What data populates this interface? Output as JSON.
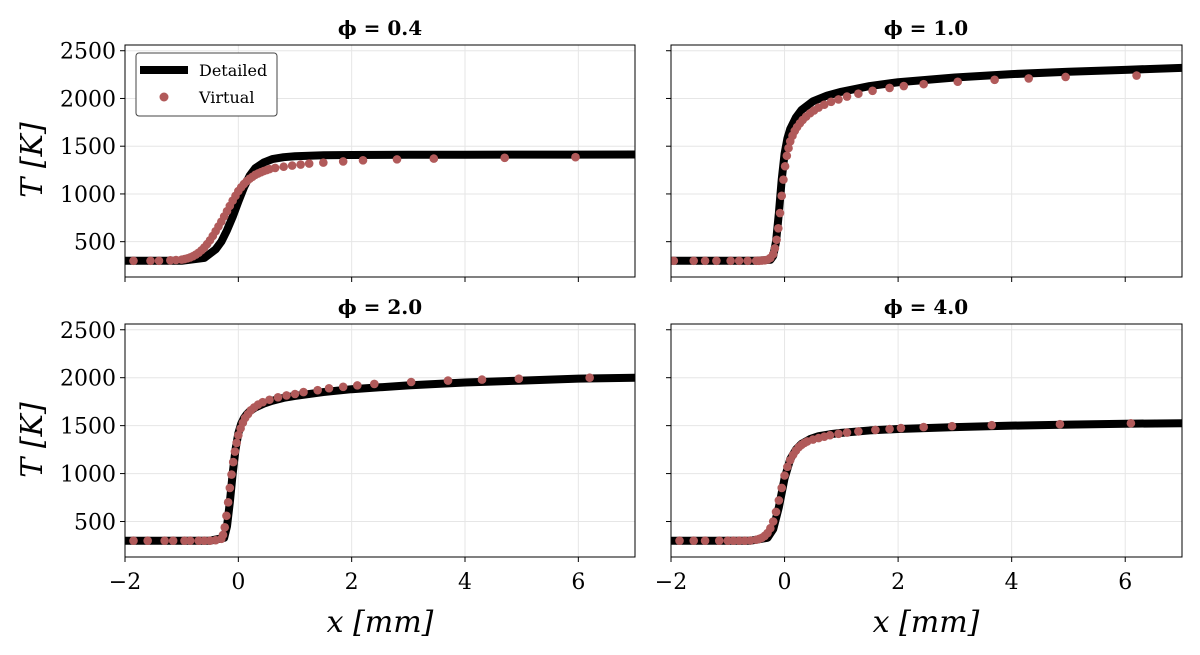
{
  "colors": {
    "detailed": "#000000",
    "virtual": "#b15a5a",
    "grid": "#e6e6e6"
  },
  "chart_data": [
    {
      "type": "line",
      "title": "ϕ = 0.4",
      "xlim": [
        -2,
        7
      ],
      "ylim": [
        130,
        2560
      ],
      "xticks": [
        -2,
        0,
        2,
        4,
        6
      ],
      "yticks": [
        500,
        1000,
        1500,
        2000,
        2500
      ],
      "show_xticklabels": false,
      "show_yticklabels": true,
      "xlabel": "",
      "ylabel": "T [K]",
      "grid": true,
      "legend": {
        "position": "top-left",
        "entries": [
          "Detailed",
          "Virtual"
        ]
      },
      "series": [
        {
          "name": "Detailed",
          "style": "line",
          "x": [
            -2.0,
            -1.0,
            -0.6,
            -0.4,
            -0.3,
            -0.2,
            -0.1,
            0.0,
            0.1,
            0.2,
            0.3,
            0.45,
            0.6,
            0.8,
            1.0,
            1.5,
            2.0,
            3.0,
            4.0,
            5.0,
            6.0,
            7.0
          ],
          "y": [
            300,
            300,
            330,
            420,
            500,
            620,
            760,
            920,
            1070,
            1190,
            1270,
            1330,
            1365,
            1385,
            1395,
            1405,
            1408,
            1410,
            1411,
            1412,
            1412,
            1413
          ]
        },
        {
          "name": "Virtual",
          "style": "scatter",
          "x": [
            -1.85,
            -1.55,
            -1.4,
            -1.2,
            -1.1,
            -1.0,
            -0.95,
            -0.9,
            -0.85,
            -0.8,
            -0.75,
            -0.7,
            -0.65,
            -0.6,
            -0.55,
            -0.5,
            -0.45,
            -0.4,
            -0.35,
            -0.3,
            -0.25,
            -0.2,
            -0.15,
            -0.1,
            -0.05,
            0.0,
            0.05,
            0.1,
            0.15,
            0.2,
            0.25,
            0.3,
            0.35,
            0.4,
            0.45,
            0.5,
            0.55,
            0.65,
            0.8,
            0.95,
            1.1,
            1.25,
            1.5,
            1.85,
            2.2,
            2.8,
            3.45,
            4.7,
            5.95
          ],
          "y": [
            300,
            300,
            300,
            305,
            308,
            312,
            318,
            325,
            335,
            348,
            365,
            385,
            410,
            440,
            475,
            515,
            560,
            610,
            660,
            710,
            765,
            820,
            875,
            930,
            980,
            1030,
            1070,
            1105,
            1135,
            1160,
            1180,
            1200,
            1215,
            1228,
            1240,
            1250,
            1260,
            1272,
            1285,
            1297,
            1308,
            1318,
            1328,
            1340,
            1352,
            1362,
            1370,
            1378,
            1385
          ]
        }
      ]
    },
    {
      "type": "line",
      "title": "ϕ = 1.0",
      "xlim": [
        -2,
        7
      ],
      "ylim": [
        130,
        2560
      ],
      "xticks": [
        -2,
        0,
        2,
        4,
        6
      ],
      "yticks": [
        500,
        1000,
        1500,
        2000,
        2500
      ],
      "show_xticklabels": false,
      "show_yticklabels": false,
      "xlabel": "",
      "ylabel": "",
      "grid": true,
      "series": [
        {
          "name": "Detailed",
          "style": "line",
          "x": [
            -2.0,
            -0.5,
            -0.25,
            -0.2,
            -0.15,
            -0.1,
            -0.05,
            0.0,
            0.05,
            0.1,
            0.2,
            0.3,
            0.5,
            0.75,
            1.0,
            1.5,
            2.0,
            3.0,
            4.0,
            5.0,
            6.0,
            7.0
          ],
          "y": [
            300,
            300,
            310,
            350,
            500,
            800,
            1150,
            1420,
            1580,
            1680,
            1800,
            1880,
            1970,
            2030,
            2070,
            2130,
            2170,
            2220,
            2255,
            2280,
            2300,
            2320
          ]
        },
        {
          "name": "Virtual",
          "style": "scatter",
          "x": [
            -1.95,
            -1.6,
            -1.4,
            -1.2,
            -0.95,
            -0.8,
            -0.65,
            -0.5,
            -0.45,
            -0.4,
            -0.35,
            -0.3,
            -0.25,
            -0.2,
            -0.17,
            -0.14,
            -0.11,
            -0.08,
            -0.05,
            -0.02,
            0.01,
            0.04,
            0.07,
            0.1,
            0.14,
            0.18,
            0.22,
            0.27,
            0.32,
            0.38,
            0.45,
            0.52,
            0.6,
            0.7,
            0.82,
            0.95,
            1.1,
            1.3,
            1.55,
            1.85,
            2.1,
            2.45,
            3.05,
            3.7,
            4.3,
            4.95,
            6.2
          ],
          "y": [
            300,
            300,
            300,
            300,
            300,
            300,
            300,
            300,
            300,
            302,
            305,
            312,
            330,
            370,
            430,
            520,
            640,
            800,
            980,
            1150,
            1290,
            1400,
            1480,
            1550,
            1610,
            1660,
            1700,
            1740,
            1775,
            1810,
            1845,
            1875,
            1905,
            1935,
            1965,
            1990,
            2020,
            2050,
            2080,
            2110,
            2130,
            2150,
            2175,
            2195,
            2210,
            2225,
            2240
          ]
        }
      ]
    },
    {
      "type": "line",
      "title": "ϕ = 2.0",
      "xlim": [
        -2,
        7
      ],
      "ylim": [
        130,
        2560
      ],
      "xticks": [
        -2,
        0,
        2,
        4,
        6
      ],
      "yticks": [
        500,
        1000,
        1500,
        2000,
        2500
      ],
      "show_xticklabels": true,
      "show_yticklabels": true,
      "xlabel": "x [mm]",
      "ylabel": "T [K]",
      "grid": true,
      "series": [
        {
          "name": "Detailed",
          "style": "line",
          "x": [
            -2.0,
            -0.5,
            -0.25,
            -0.2,
            -0.15,
            -0.1,
            -0.05,
            0.0,
            0.05,
            0.1,
            0.15,
            0.2,
            0.3,
            0.45,
            0.6,
            0.8,
            1.0,
            1.5,
            2.0,
            3.0,
            4.0,
            5.0,
            6.0,
            7.0
          ],
          "y": [
            300,
            300,
            330,
            450,
            700,
            1000,
            1250,
            1420,
            1520,
            1580,
            1620,
            1650,
            1690,
            1730,
            1760,
            1790,
            1810,
            1850,
            1880,
            1920,
            1950,
            1970,
            1990,
            2000
          ]
        },
        {
          "name": "Virtual",
          "style": "scatter",
          "x": [
            -1.85,
            -1.6,
            -1.3,
            -1.15,
            -0.95,
            -0.85,
            -0.7,
            -0.6,
            -0.5,
            -0.4,
            -0.3,
            -0.27,
            -0.24,
            -0.21,
            -0.18,
            -0.15,
            -0.12,
            -0.09,
            -0.06,
            -0.03,
            0.0,
            0.04,
            0.08,
            0.12,
            0.17,
            0.22,
            0.28,
            0.35,
            0.43,
            0.55,
            0.7,
            0.85,
            1.0,
            1.15,
            1.4,
            1.6,
            1.85,
            2.1,
            2.4,
            3.05,
            3.7,
            4.3,
            4.95,
            6.2
          ],
          "y": [
            300,
            300,
            300,
            300,
            300,
            300,
            300,
            300,
            300,
            305,
            320,
            360,
            440,
            560,
            700,
            850,
            990,
            1120,
            1230,
            1320,
            1400,
            1470,
            1530,
            1580,
            1620,
            1660,
            1690,
            1720,
            1745,
            1770,
            1795,
            1815,
            1830,
            1850,
            1870,
            1890,
            1905,
            1920,
            1935,
            1955,
            1970,
            1980,
            1990,
            2000
          ]
        }
      ]
    },
    {
      "type": "line",
      "title": "ϕ = 4.0",
      "xlim": [
        -2,
        7
      ],
      "ylim": [
        130,
        2560
      ],
      "xticks": [
        -2,
        0,
        2,
        4,
        6
      ],
      "yticks": [
        500,
        1000,
        1500,
        2000,
        2500
      ],
      "show_xticklabels": true,
      "show_yticklabels": false,
      "xlabel": "x [mm]",
      "ylabel": "",
      "grid": true,
      "series": [
        {
          "name": "Detailed",
          "style": "line",
          "x": [
            -2.0,
            -0.6,
            -0.3,
            -0.2,
            -0.1,
            0.0,
            0.1,
            0.2,
            0.3,
            0.45,
            0.6,
            0.8,
            1.0,
            1.5,
            2.0,
            3.0,
            4.0,
            5.0,
            6.0,
            7.0
          ],
          "y": [
            300,
            300,
            330,
            420,
            650,
            950,
            1150,
            1250,
            1310,
            1360,
            1390,
            1410,
            1425,
            1450,
            1465,
            1485,
            1500,
            1510,
            1520,
            1525
          ]
        },
        {
          "name": "Virtual",
          "style": "scatter",
          "x": [
            -1.85,
            -1.6,
            -1.4,
            -1.15,
            -1.0,
            -0.9,
            -0.8,
            -0.7,
            -0.6,
            -0.5,
            -0.45,
            -0.4,
            -0.35,
            -0.3,
            -0.25,
            -0.2,
            -0.15,
            -0.1,
            -0.05,
            0.0,
            0.05,
            0.1,
            0.15,
            0.2,
            0.25,
            0.3,
            0.35,
            0.4,
            0.5,
            0.6,
            0.7,
            0.8,
            0.95,
            1.1,
            1.3,
            1.6,
            1.85,
            2.05,
            2.45,
            2.95,
            3.65,
            4.85,
            6.1
          ],
          "y": [
            300,
            300,
            300,
            300,
            300,
            300,
            300,
            300,
            302,
            310,
            318,
            330,
            350,
            380,
            430,
            500,
            600,
            720,
            850,
            980,
            1070,
            1140,
            1195,
            1240,
            1275,
            1300,
            1320,
            1335,
            1355,
            1370,
            1385,
            1400,
            1415,
            1428,
            1440,
            1455,
            1465,
            1475,
            1485,
            1495,
            1505,
            1515,
            1525
          ]
        }
      ]
    }
  ]
}
